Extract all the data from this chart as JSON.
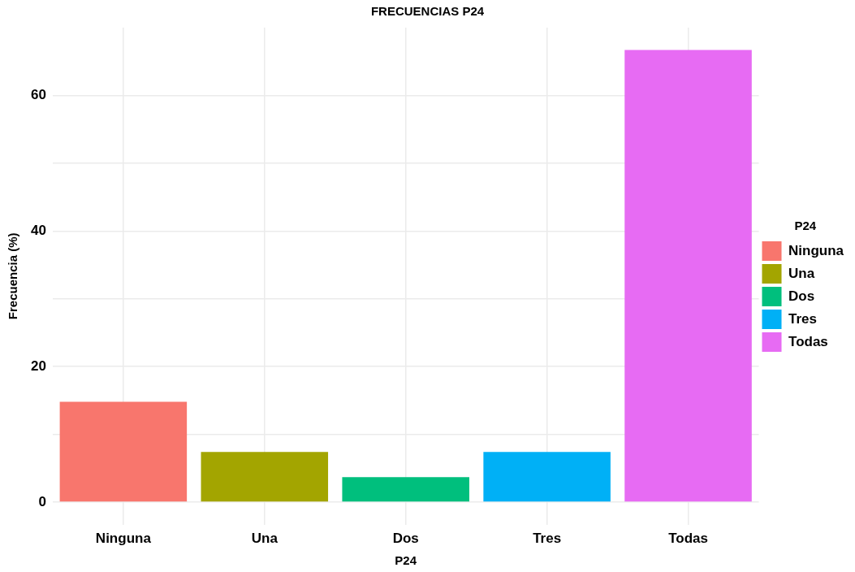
{
  "chart_data": {
    "type": "bar",
    "title": "FRECUENCIAS P24",
    "xlabel": "P24",
    "ylabel": "Frecuencia (%)",
    "legend_title": "P24",
    "categories": [
      "Ninguna",
      "Una",
      "Dos",
      "Tres",
      "Todas"
    ],
    "series": [
      {
        "name": "Ninguna",
        "color": "#f8766d",
        "values": [
          14.8,
          null,
          null,
          null,
          null
        ]
      },
      {
        "name": "Una",
        "color": "#a3a500",
        "values": [
          null,
          7.4,
          null,
          null,
          null
        ]
      },
      {
        "name": "Dos",
        "color": "#00bf7d",
        "values": [
          null,
          null,
          3.7,
          null,
          null
        ]
      },
      {
        "name": "Tres",
        "color": "#00b0f6",
        "values": [
          null,
          null,
          null,
          7.4,
          null
        ]
      },
      {
        "name": "Todas",
        "color": "#e76bf3",
        "values": [
          null,
          null,
          null,
          null,
          66.7
        ]
      }
    ],
    "ylim": [
      -3.3,
      70
    ],
    "yticks": [
      0,
      {
        "value": 10,
        "label": null
      },
      20,
      {
        "value": 30,
        "label": null
      },
      40,
      {
        "value": 50,
        "label": null
      },
      60
    ],
    "grid": true,
    "legend": "right"
  }
}
